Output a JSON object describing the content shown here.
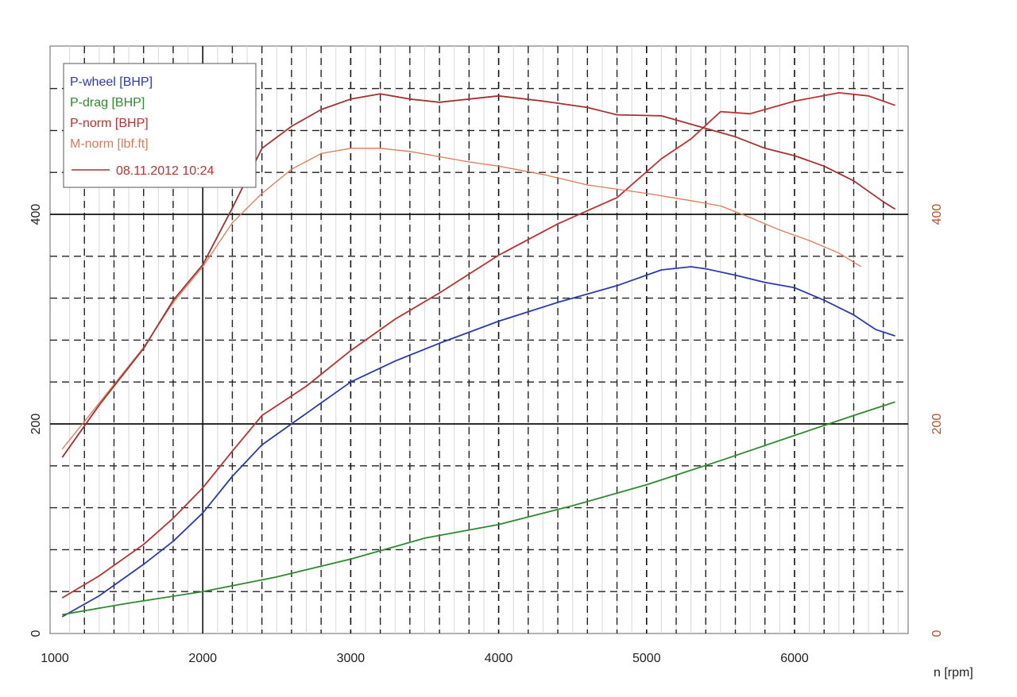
{
  "chart_data": {
    "type": "line",
    "xlabel": "n [rpm]",
    "x_ticks": [
      "1000",
      "2000",
      "3000",
      "4000",
      "5000",
      "6000"
    ],
    "y_left_ticks": [
      "0",
      "200",
      "400"
    ],
    "y_right_ticks": [
      "0",
      "200",
      "400"
    ],
    "xlim": [
      1000,
      6750
    ],
    "ylim": [
      0,
      555
    ],
    "grid": true,
    "legend_position": "top-left",
    "legend_timestamp": "08.11.2012 10:24",
    "series": [
      {
        "name": "P-wheel [BHP]",
        "color": "#2b3bb0",
        "points": [
          [
            1050,
            16
          ],
          [
            1300,
            36
          ],
          [
            1600,
            66
          ],
          [
            1800,
            88
          ],
          [
            2000,
            115
          ],
          [
            2200,
            150
          ],
          [
            2400,
            180
          ],
          [
            2700,
            210
          ],
          [
            3000,
            240
          ],
          [
            3300,
            260
          ],
          [
            3600,
            277
          ],
          [
            4000,
            298
          ],
          [
            4400,
            316
          ],
          [
            4800,
            332
          ],
          [
            5100,
            347
          ],
          [
            5300,
            350
          ],
          [
            5400,
            348
          ],
          [
            5600,
            342
          ],
          [
            5800,
            335
          ],
          [
            6000,
            330
          ],
          [
            6200,
            318
          ],
          [
            6400,
            304
          ],
          [
            6550,
            290
          ],
          [
            6680,
            284
          ]
        ]
      },
      {
        "name": "P-drag [BHP]",
        "color": "#2f8a2f",
        "points": [
          [
            1050,
            18
          ],
          [
            1500,
            29
          ],
          [
            2000,
            40
          ],
          [
            2500,
            54
          ],
          [
            3000,
            71
          ],
          [
            3500,
            91
          ],
          [
            4000,
            104
          ],
          [
            4500,
            122
          ],
          [
            5000,
            142
          ],
          [
            5500,
            165
          ],
          [
            6000,
            189
          ],
          [
            6400,
            208
          ],
          [
            6680,
            221
          ]
        ]
      },
      {
        "name": "P-norm [BHP]",
        "color": "#c03030",
        "points": [
          [
            1050,
            34
          ],
          [
            1300,
            55
          ],
          [
            1600,
            85
          ],
          [
            1800,
            110
          ],
          [
            2000,
            139
          ],
          [
            2200,
            174
          ],
          [
            2400,
            208
          ],
          [
            2700,
            236
          ],
          [
            3000,
            270
          ],
          [
            3300,
            300
          ],
          [
            3600,
            325
          ],
          [
            4000,
            361
          ],
          [
            4400,
            391
          ],
          [
            4800,
            416
          ],
          [
            5100,
            453
          ],
          [
            5300,
            472
          ],
          [
            5500,
            498
          ],
          [
            5700,
            496
          ],
          [
            6000,
            508
          ],
          [
            6300,
            516
          ],
          [
            6500,
            513
          ],
          [
            6680,
            504
          ]
        ]
      },
      {
        "name": "M-norm [lbf.ft]",
        "color": "#e07a55",
        "points": [
          [
            1050,
            176
          ],
          [
            1300,
            220
          ],
          [
            1600,
            273
          ],
          [
            1800,
            316
          ],
          [
            2000,
            350
          ],
          [
            2200,
            392
          ],
          [
            2400,
            420
          ],
          [
            2600,
            443
          ],
          [
            2800,
            458
          ],
          [
            3000,
            463
          ],
          [
            3200,
            463
          ],
          [
            3400,
            460
          ],
          [
            3600,
            455
          ],
          [
            3800,
            450
          ],
          [
            4000,
            446
          ],
          [
            4300,
            438
          ],
          [
            4600,
            428
          ],
          [
            5000,
            420
          ],
          [
            5300,
            413
          ],
          [
            5500,
            408
          ],
          [
            5700,
            397
          ],
          [
            5900,
            385
          ],
          [
            6100,
            375
          ],
          [
            6300,
            363
          ],
          [
            6450,
            350
          ]
        ]
      },
      {
        "name": "",
        "color": "#a83030",
        "points": [
          [
            1050,
            168
          ],
          [
            1300,
            218
          ],
          [
            1600,
            272
          ],
          [
            1800,
            318
          ],
          [
            2000,
            352
          ],
          [
            2200,
            406
          ],
          [
            2400,
            463
          ],
          [
            2600,
            484
          ],
          [
            2800,
            500
          ],
          [
            3000,
            510
          ],
          [
            3200,
            515
          ],
          [
            3400,
            510
          ],
          [
            3600,
            507
          ],
          [
            3800,
            510
          ],
          [
            4000,
            513
          ],
          [
            4300,
            508
          ],
          [
            4600,
            502
          ],
          [
            4800,
            495
          ],
          [
            5100,
            494
          ],
          [
            5400,
            482
          ],
          [
            5600,
            474
          ],
          [
            5800,
            463
          ],
          [
            6000,
            456
          ],
          [
            6200,
            446
          ],
          [
            6400,
            432
          ],
          [
            6600,
            412
          ],
          [
            6680,
            405
          ]
        ]
      }
    ]
  }
}
